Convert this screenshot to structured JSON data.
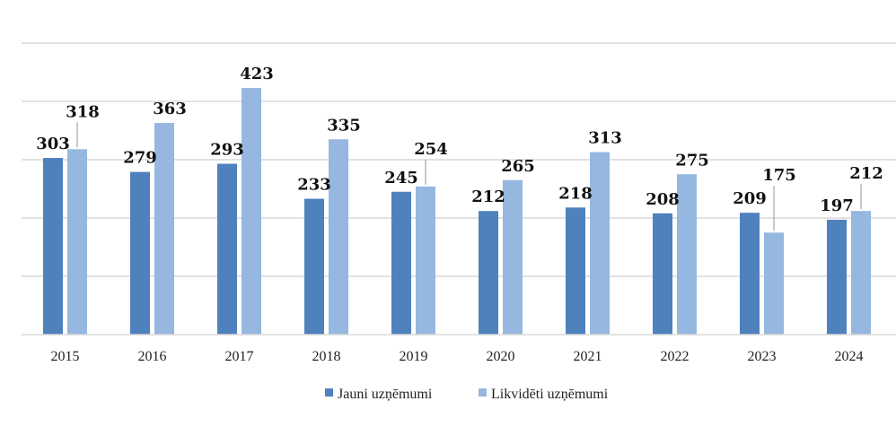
{
  "chart_data": {
    "type": "bar",
    "title": "",
    "xlabel": "",
    "ylabel": "",
    "categories": [
      "2015",
      "2016",
      "2017",
      "2018",
      "2019",
      "2020",
      "2021",
      "2022",
      "2023",
      "2024"
    ],
    "series": [
      {
        "name": "Jauni uzņēmumi",
        "color": "#4f81bd",
        "values": [
          303,
          279,
          293,
          233,
          245,
          212,
          218,
          208,
          209,
          197
        ]
      },
      {
        "name": "Likvidēti uzņēmumi",
        "color": "#95b7e0",
        "values": [
          318,
          363,
          423,
          335,
          254,
          265,
          313,
          275,
          175,
          212
        ]
      }
    ],
    "ylim": [
      0,
      500
    ],
    "grid": true,
    "legend": "bottom",
    "y_tick_labels_shown": false
  }
}
